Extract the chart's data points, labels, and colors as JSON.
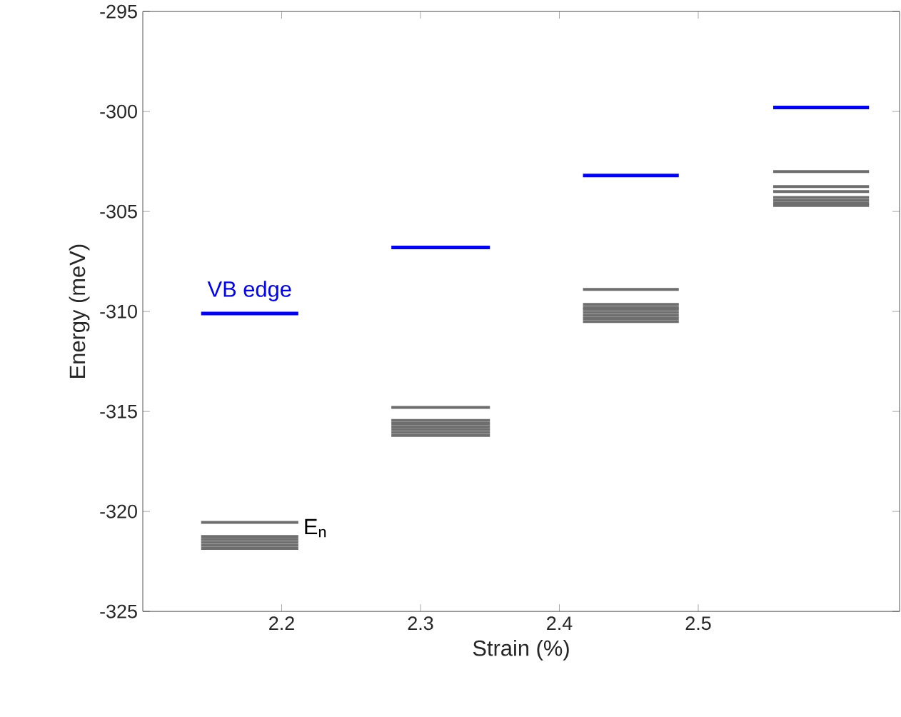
{
  "chart_data": {
    "type": "line",
    "xlabel": "Strain (%)",
    "ylabel": "Energy (meV)",
    "xlim": [
      2.1,
      2.645
    ],
    "ylim": [
      -325,
      -295
    ],
    "xticks": [
      2.2,
      2.3,
      2.4,
      2.5
    ],
    "yticks": [
      -325,
      -320,
      -315,
      -310,
      -305,
      -300,
      -295
    ],
    "series": [
      {
        "name": "VB edge",
        "color": "#0000ff",
        "x": [
          2.142,
          2.212
        ],
        "values": [
          -310.1,
          -310.1
        ]
      },
      {
        "color": "#0000ff",
        "x": [
          2.279,
          2.35
        ],
        "values": [
          -306.8,
          -306.8
        ]
      },
      {
        "color": "#0000ff",
        "x": [
          2.417,
          2.486
        ],
        "values": [
          -303.2,
          -303.2
        ]
      },
      {
        "color": "#0000ff",
        "x": [
          2.554,
          2.623
        ],
        "values": [
          -299.8,
          -299.8
        ]
      },
      {
        "name": "E$_{n}$",
        "color": "#6e6e6e",
        "x": [
          2.142,
          2.212
        ],
        "values": [
          -320.55,
          -320.55
        ]
      },
      {
        "color": "#6e6e6e",
        "x": [
          2.142,
          2.212
        ],
        "values": [
          -321.25,
          -321.25
        ]
      },
      {
        "color": "#6e6e6e",
        "x": [
          2.142,
          2.212
        ],
        "values": [
          -321.4,
          -321.4
        ]
      },
      {
        "color": "#6e6e6e",
        "x": [
          2.142,
          2.212
        ],
        "values": [
          -321.55,
          -321.55
        ]
      },
      {
        "color": "#6e6e6e",
        "x": [
          2.142,
          2.212
        ],
        "values": [
          -321.7,
          -321.7
        ]
      },
      {
        "color": "#6e6e6e",
        "x": [
          2.142,
          2.212
        ],
        "values": [
          -321.85,
          -321.85
        ]
      },
      {
        "color": "#6e6e6e",
        "x": [
          2.279,
          2.35
        ],
        "values": [
          -314.8,
          -314.8
        ]
      },
      {
        "color": "#6e6e6e",
        "x": [
          2.279,
          2.35
        ],
        "values": [
          -315.45,
          -315.45
        ]
      },
      {
        "color": "#6e6e6e",
        "x": [
          2.279,
          2.35
        ],
        "values": [
          -315.6,
          -315.6
        ]
      },
      {
        "color": "#6e6e6e",
        "x": [
          2.279,
          2.35
        ],
        "values": [
          -315.75,
          -315.75
        ]
      },
      {
        "color": "#6e6e6e",
        "x": [
          2.279,
          2.35
        ],
        "values": [
          -315.9,
          -315.9
        ]
      },
      {
        "color": "#6e6e6e",
        "x": [
          2.279,
          2.35
        ],
        "values": [
          -316.05,
          -316.05
        ]
      },
      {
        "color": "#6e6e6e",
        "x": [
          2.279,
          2.35
        ],
        "values": [
          -316.2,
          -316.2
        ]
      },
      {
        "color": "#6e6e6e",
        "x": [
          2.417,
          2.486
        ],
        "values": [
          -308.9,
          -308.9
        ]
      },
      {
        "color": "#6e6e6e",
        "x": [
          2.417,
          2.486
        ],
        "values": [
          -309.65,
          -309.65
        ]
      },
      {
        "color": "#6e6e6e",
        "x": [
          2.417,
          2.486
        ],
        "values": [
          -309.8,
          -309.8
        ]
      },
      {
        "color": "#6e6e6e",
        "x": [
          2.417,
          2.486
        ],
        "values": [
          -309.9,
          -309.9
        ]
      },
      {
        "color": "#6e6e6e",
        "x": [
          2.417,
          2.486
        ],
        "values": [
          -310.05,
          -310.05
        ]
      },
      {
        "color": "#6e6e6e",
        "x": [
          2.417,
          2.486
        ],
        "values": [
          -310.2,
          -310.2
        ]
      },
      {
        "color": "#6e6e6e",
        "x": [
          2.417,
          2.486
        ],
        "values": [
          -310.35,
          -310.35
        ]
      },
      {
        "color": "#6e6e6e",
        "x": [
          2.417,
          2.486
        ],
        "values": [
          -310.5,
          -310.5
        ]
      },
      {
        "color": "#6e6e6e",
        "x": [
          2.554,
          2.623
        ],
        "values": [
          -303.0,
          -303.0
        ]
      },
      {
        "color": "#6e6e6e",
        "x": [
          2.554,
          2.623
        ],
        "values": [
          -303.75,
          -303.75
        ]
      },
      {
        "color": "#6e6e6e",
        "x": [
          2.554,
          2.623
        ],
        "values": [
          -304.0,
          -304.0
        ]
      },
      {
        "color": "#6e6e6e",
        "x": [
          2.554,
          2.623
        ],
        "values": [
          -304.3,
          -304.3
        ]
      },
      {
        "color": "#6e6e6e",
        "x": [
          2.554,
          2.623
        ],
        "values": [
          -304.45,
          -304.45
        ]
      },
      {
        "color": "#6e6e6e",
        "x": [
          2.554,
          2.623
        ],
        "values": [
          -304.6,
          -304.6
        ]
      },
      {
        "color": "#6e6e6e",
        "x": [
          2.554,
          2.623
        ],
        "values": [
          -304.7,
          -304.7
        ]
      }
    ]
  }
}
